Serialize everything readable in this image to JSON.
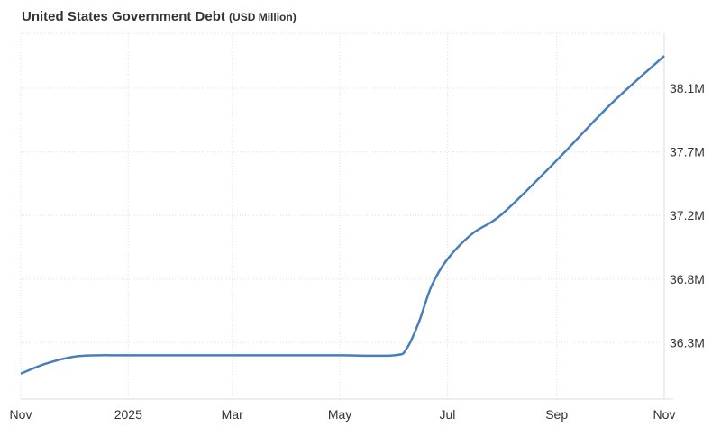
{
  "chart_data": {
    "type": "line",
    "title": "United States Government Debt",
    "unit": "(USD Million)",
    "x_tick_labels": [
      "Nov",
      "2025",
      "Mar",
      "May",
      "Jul",
      "Sep",
      "Nov"
    ],
    "x_tick_dates": [
      "2024-11-01",
      "2025-01-01",
      "2025-03-01",
      "2025-05-01",
      "2025-07-01",
      "2025-09-01",
      "2025-11-01"
    ],
    "y_tick_labels": [
      "36.3M",
      "36.8M",
      "37.2M",
      "37.7M",
      "38.1M"
    ],
    "y_tick_values": [
      36.3,
      36.75,
      37.2,
      37.65,
      38.1
    ],
    "ylim": [
      35.9,
      38.49
    ],
    "grid": true,
    "y_axis_side": "right",
    "color": "#4a7ebb",
    "series": [
      {
        "x": [
          "2024-11-01",
          "2024-11-15",
          "2024-12-01",
          "2024-12-15",
          "2025-01-01",
          "2025-03-01",
          "2025-04-01",
          "2025-05-01",
          "2025-06-01",
          "2025-06-08",
          "2025-06-15",
          "2025-06-22",
          "2025-07-01",
          "2025-07-15",
          "2025-08-01",
          "2025-09-01",
          "2025-10-01",
          "2025-11-01"
        ],
        "values": [
          36.08,
          36.15,
          36.2,
          36.21,
          36.21,
          36.21,
          36.21,
          36.21,
          36.21,
          36.26,
          36.45,
          36.7,
          36.89,
          37.07,
          37.21,
          37.59,
          37.98,
          38.33
        ]
      }
    ]
  }
}
